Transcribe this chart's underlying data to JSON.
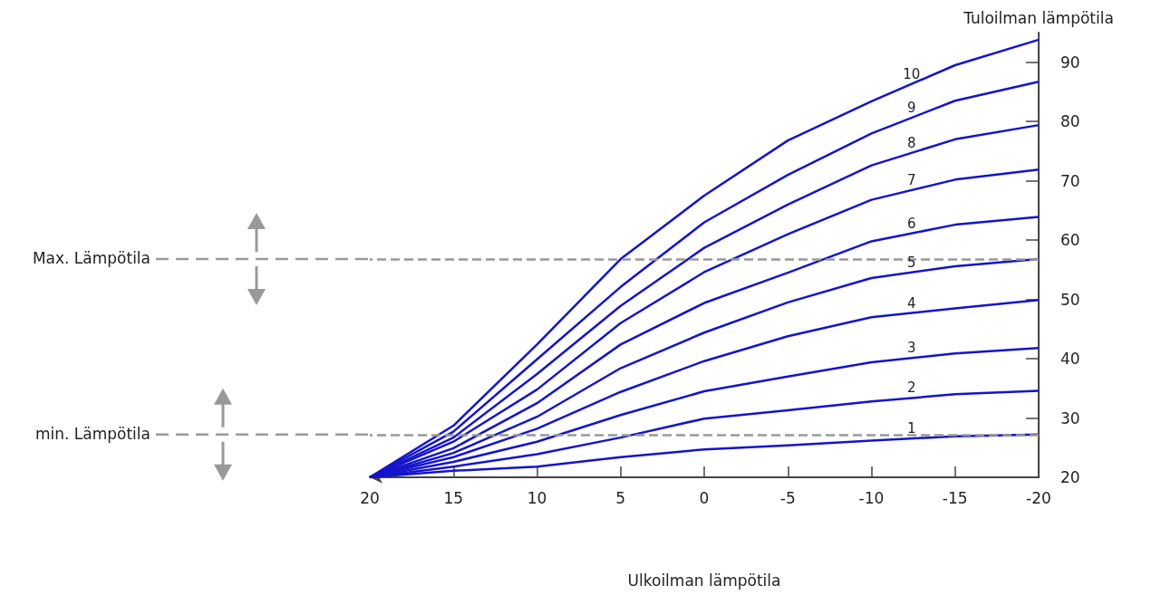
{
  "chart_data": {
    "type": "line",
    "xlabel": "Ulkoilman lämpötila",
    "ylabel": "Tuloilman lämpötila",
    "x": [
      20,
      15,
      10,
      5,
      0,
      -5,
      -10,
      -15,
      -20
    ],
    "xlim": [
      20,
      -20
    ],
    "xticks": [
      20,
      15,
      10,
      5,
      0,
      -5,
      -10,
      -15,
      -20
    ],
    "ylim": [
      20,
      95
    ],
    "yticks": [
      20,
      30,
      40,
      50,
      60,
      70,
      80,
      90
    ],
    "grid": false,
    "legend": false,
    "marker": "none",
    "line_style": "solid",
    "series": [
      {
        "name": "1",
        "color": "#1414cc",
        "values": [
          20,
          21.1,
          21.8,
          23.4,
          24.7,
          25.4,
          26.2,
          26.9,
          27.2
        ]
      },
      {
        "name": "2",
        "color": "#1414cc",
        "values": [
          20,
          21.8,
          23.9,
          26.7,
          29.9,
          31.3,
          32.8,
          34,
          34.6
        ]
      },
      {
        "name": "3",
        "color": "#1414cc",
        "values": [
          20,
          22.6,
          26,
          30.5,
          34.5,
          37,
          39.4,
          40.9,
          41.8
        ]
      },
      {
        "name": "4",
        "color": "#1414cc",
        "values": [
          20,
          23.4,
          28.2,
          34.4,
          39.6,
          43.8,
          47,
          48.5,
          49.9
        ]
      },
      {
        "name": "5",
        "color": "#1414cc",
        "values": [
          20,
          24.1,
          30.2,
          38.4,
          44.4,
          49.5,
          53.6,
          55.6,
          56.8
        ]
      },
      {
        "name": "6",
        "color": "#1414cc",
        "values": [
          20,
          24.9,
          32.5,
          42.4,
          49.4,
          54.5,
          59.8,
          62.6,
          63.9
        ]
      },
      {
        "name": "7",
        "color": "#1414cc",
        "values": [
          20,
          26,
          34.8,
          46,
          54.6,
          61,
          66.8,
          70.2,
          71.9
        ]
      },
      {
        "name": "8",
        "color": "#1414cc",
        "values": [
          20,
          26.7,
          37.4,
          48.9,
          58.7,
          66,
          72.6,
          77,
          79.4
        ]
      },
      {
        "name": "9",
        "color": "#1414cc",
        "values": [
          20,
          27.7,
          39.9,
          52.1,
          63,
          71,
          78,
          83.5,
          86.7
        ]
      },
      {
        "name": "10",
        "color": "#1414cc",
        "values": [
          20,
          28.7,
          42.4,
          56.8,
          67.5,
          76.8,
          83.4,
          89.5,
          93.8
        ]
      }
    ],
    "ref_lines": [
      {
        "axis": "y",
        "value": 56.8,
        "label": "Max. Lämpötila",
        "color": "#999999",
        "line_style": "dashed"
      },
      {
        "axis": "y",
        "value": 27.2,
        "label": "min. Lämpötila",
        "color": "#999999",
        "line_style": "dashed"
      }
    ]
  }
}
